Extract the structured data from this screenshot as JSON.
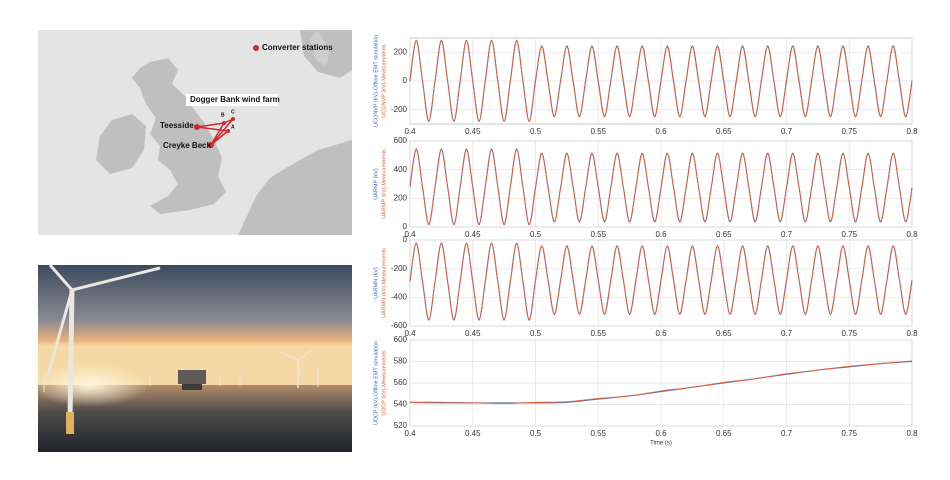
{
  "map": {
    "converter_legend": "Converter stations",
    "wind_farm": "Dogger Bank wind farm",
    "teesside": "Teesside",
    "creyke_beck": "Creyke Beck",
    "site_a": "A",
    "site_b": "B",
    "site_c": "C"
  },
  "chart_data": [
    {
      "type": "line",
      "xlim": [
        0.4,
        0.8
      ],
      "xticks": [
        0.4,
        0.45,
        0.5,
        0.55,
        0.6,
        0.65,
        0.7,
        0.75,
        0.8
      ],
      "ylim": [
        -300,
        300
      ],
      "yticks": [
        -200,
        0,
        200
      ],
      "grid": true,
      "x": [
        0.4,
        0.405,
        0.41,
        0.415,
        0.42,
        0.425,
        0.43,
        0.435,
        0.44,
        0.445,
        0.45,
        0.455,
        0.46,
        0.465,
        0.47,
        0.475,
        0.48,
        0.485,
        0.49,
        0.495,
        0.5,
        0.505,
        0.51,
        0.515,
        0.52,
        0.525,
        0.53,
        0.535,
        0.54,
        0.545,
        0.55,
        0.555,
        0.56,
        0.565,
        0.57,
        0.575,
        0.58,
        0.585,
        0.59,
        0.595,
        0.6,
        0.605,
        0.61,
        0.615,
        0.62,
        0.625,
        0.63,
        0.635,
        0.64,
        0.645,
        0.65,
        0.655,
        0.66,
        0.665,
        0.67,
        0.675,
        0.68,
        0.685,
        0.69,
        0.695,
        0.7,
        0.705,
        0.71,
        0.715,
        0.72,
        0.725,
        0.73,
        0.735,
        0.74,
        0.745,
        0.75,
        0.755,
        0.76,
        0.765,
        0.77,
        0.775,
        0.78,
        0.785,
        0.79,
        0.795,
        0.8
      ],
      "series": [
        {
          "name": "UCONVP (kV)-Offline EMT simulation",
          "color": "#3b6fb6",
          "values": [
            0,
            280,
            0,
            -280,
            0,
            280,
            0,
            -280,
            0,
            280,
            0,
            -280,
            0,
            280,
            0,
            -280,
            0,
            280,
            0,
            -280,
            0,
            245,
            0,
            -245,
            0,
            245,
            0,
            -245,
            0,
            245,
            0,
            -245,
            0,
            245,
            0,
            -245,
            0,
            245,
            0,
            -245,
            0,
            245,
            0,
            -245,
            0,
            245,
            0,
            -245,
            0,
            245,
            0,
            -245,
            0,
            245,
            0,
            -245,
            0,
            245,
            0,
            -245,
            0,
            245,
            0,
            -245,
            0,
            245,
            0,
            -245,
            0,
            245,
            0,
            -245,
            0,
            245,
            0,
            -245,
            0,
            245,
            0,
            -245,
            0
          ]
        },
        {
          "name": "UCONVP (kV)-Measurements",
          "color": "#d9603b",
          "values": [
            6,
            285,
            -4,
            -283,
            6,
            285,
            -4,
            -283,
            6,
            285,
            -4,
            -283,
            6,
            285,
            -4,
            -283,
            6,
            285,
            -4,
            -283,
            5,
            240,
            -6,
            -250,
            5,
            240,
            -6,
            -250,
            5,
            240,
            -6,
            -250,
            5,
            240,
            -6,
            -250,
            5,
            240,
            -6,
            -250,
            5,
            240,
            -6,
            -250,
            5,
            240,
            -6,
            -250,
            5,
            240,
            -6,
            -250,
            5,
            240,
            -6,
            -250,
            5,
            240,
            -6,
            -250,
            5,
            240,
            -6,
            -250,
            5,
            240,
            -6,
            -250,
            5,
            240,
            -6,
            -250,
            5,
            240,
            -6,
            -250,
            5,
            240,
            -6,
            -250,
            4
          ]
        }
      ]
    },
    {
      "type": "line",
      "xlim": [
        0.4,
        0.8
      ],
      "xticks": [
        0.4,
        0.45,
        0.5,
        0.55,
        0.6,
        0.65,
        0.7,
        0.75,
        0.8
      ],
      "ylim": [
        0,
        600
      ],
      "yticks": [
        0,
        200,
        400,
        600
      ],
      "grid": true,
      "x": [
        0.4,
        0.405,
        0.41,
        0.415,
        0.42,
        0.425,
        0.43,
        0.435,
        0.44,
        0.445,
        0.45,
        0.455,
        0.46,
        0.465,
        0.47,
        0.475,
        0.48,
        0.485,
        0.49,
        0.495,
        0.5,
        0.505,
        0.51,
        0.515,
        0.52,
        0.525,
        0.53,
        0.535,
        0.54,
        0.545,
        0.55,
        0.555,
        0.56,
        0.565,
        0.57,
        0.575,
        0.58,
        0.585,
        0.59,
        0.595,
        0.6,
        0.605,
        0.61,
        0.615,
        0.62,
        0.625,
        0.63,
        0.635,
        0.64,
        0.645,
        0.65,
        0.655,
        0.66,
        0.665,
        0.67,
        0.675,
        0.68,
        0.685,
        0.69,
        0.695,
        0.7,
        0.705,
        0.71,
        0.715,
        0.72,
        0.725,
        0.73,
        0.735,
        0.74,
        0.745,
        0.75,
        0.755,
        0.76,
        0.765,
        0.77,
        0.775,
        0.78,
        0.785,
        0.79,
        0.795,
        0.8
      ],
      "series": [
        {
          "name": "UARMP (kV)",
          "color": "#3b6fb6",
          "values": [
            280,
            540,
            280,
            20,
            280,
            540,
            280,
            20,
            280,
            540,
            280,
            20,
            280,
            540,
            280,
            20,
            280,
            540,
            280,
            20,
            275,
            515,
            275,
            35,
            275,
            515,
            275,
            35,
            275,
            515,
            275,
            35,
            275,
            515,
            275,
            35,
            275,
            515,
            275,
            35,
            275,
            515,
            275,
            35,
            275,
            515,
            275,
            35,
            275,
            515,
            275,
            35,
            275,
            515,
            275,
            35,
            275,
            515,
            275,
            35,
            275,
            515,
            275,
            35,
            275,
            515,
            275,
            35,
            275,
            515,
            275,
            35,
            275,
            515,
            275,
            35,
            275,
            515,
            275,
            35,
            275
          ]
        },
        {
          "name": "UARMP (kV)-Measurements",
          "color": "#d9603b",
          "values": [
            284,
            545,
            276,
            15,
            284,
            545,
            276,
            15,
            284,
            545,
            276,
            15,
            284,
            545,
            276,
            15,
            284,
            545,
            276,
            15,
            272,
            510,
            278,
            40,
            272,
            510,
            278,
            40,
            272,
            510,
            278,
            40,
            272,
            510,
            278,
            40,
            272,
            510,
            278,
            40,
            272,
            510,
            278,
            40,
            272,
            510,
            278,
            40,
            272,
            510,
            278,
            40,
            272,
            510,
            278,
            40,
            272,
            510,
            278,
            40,
            272,
            510,
            278,
            40,
            272,
            510,
            278,
            40,
            272,
            510,
            278,
            40,
            272,
            510,
            278,
            40,
            272,
            510,
            278,
            40,
            272
          ]
        }
      ]
    },
    {
      "type": "line",
      "xlim": [
        0.4,
        0.8
      ],
      "xticks": [
        0.4,
        0.45,
        0.5,
        0.55,
        0.6,
        0.65,
        0.7,
        0.75,
        0.8
      ],
      "ylim": [
        -600,
        0
      ],
      "yticks": [
        -600,
        -400,
        -200,
        0
      ],
      "grid": true,
      "x": [
        0.4,
        0.405,
        0.41,
        0.415,
        0.42,
        0.425,
        0.43,
        0.435,
        0.44,
        0.445,
        0.45,
        0.455,
        0.46,
        0.465,
        0.47,
        0.475,
        0.48,
        0.485,
        0.49,
        0.495,
        0.5,
        0.505,
        0.51,
        0.515,
        0.52,
        0.525,
        0.53,
        0.535,
        0.54,
        0.545,
        0.55,
        0.555,
        0.56,
        0.565,
        0.57,
        0.575,
        0.58,
        0.585,
        0.59,
        0.595,
        0.6,
        0.605,
        0.61,
        0.615,
        0.62,
        0.625,
        0.63,
        0.635,
        0.64,
        0.645,
        0.65,
        0.655,
        0.66,
        0.665,
        0.67,
        0.675,
        0.68,
        0.685,
        0.69,
        0.695,
        0.7,
        0.705,
        0.71,
        0.715,
        0.72,
        0.725,
        0.73,
        0.735,
        0.74,
        0.745,
        0.75,
        0.755,
        0.76,
        0.765,
        0.77,
        0.775,
        0.78,
        0.785,
        0.79,
        0.795,
        0.8
      ],
      "series": [
        {
          "name": "UARMN (kV)",
          "color": "#3b6fb6",
          "values": [
            -290,
            -25,
            -290,
            -555,
            -290,
            -25,
            -290,
            -555,
            -290,
            -25,
            -290,
            -555,
            -290,
            -25,
            -290,
            -555,
            -290,
            -25,
            -290,
            -555,
            -280,
            -45,
            -280,
            -515,
            -280,
            -45,
            -280,
            -515,
            -280,
            -45,
            -280,
            -515,
            -280,
            -45,
            -280,
            -515,
            -280,
            -45,
            -280,
            -515,
            -280,
            -45,
            -280,
            -515,
            -280,
            -45,
            -280,
            -515,
            -280,
            -45,
            -280,
            -515,
            -280,
            -45,
            -280,
            -515,
            -280,
            -45,
            -280,
            -515,
            -280,
            -45,
            -280,
            -515,
            -280,
            -45,
            -280,
            -515,
            -280,
            -45,
            -280,
            -515,
            -280,
            -45,
            -280,
            -515,
            -280,
            -45,
            -280,
            -515,
            -280
          ]
        },
        {
          "name": "UARMN (kV)-Measurements",
          "color": "#d9603b",
          "values": [
            -286,
            -20,
            -294,
            -560,
            -286,
            -20,
            -294,
            -560,
            -286,
            -20,
            -294,
            -560,
            -286,
            -20,
            -294,
            -560,
            -286,
            -20,
            -294,
            -560,
            -283,
            -40,
            -277,
            -520,
            -283,
            -40,
            -277,
            -520,
            -283,
            -40,
            -277,
            -520,
            -283,
            -40,
            -277,
            -520,
            -283,
            -40,
            -277,
            -520,
            -283,
            -40,
            -277,
            -520,
            -283,
            -40,
            -277,
            -520,
            -283,
            -40,
            -277,
            -520,
            -283,
            -40,
            -277,
            -520,
            -283,
            -40,
            -277,
            -520,
            -283,
            -40,
            -277,
            -520,
            -283,
            -40,
            -277,
            -520,
            -283,
            -40,
            -277,
            -520,
            -283,
            -40,
            -277,
            -520,
            -283,
            -40,
            -277,
            -520,
            -283
          ]
        }
      ]
    },
    {
      "type": "line",
      "xlabel": "Time (s)",
      "xlim": [
        0.4,
        0.8
      ],
      "xticks": [
        0.4,
        0.45,
        0.5,
        0.55,
        0.6,
        0.65,
        0.7,
        0.75,
        0.8
      ],
      "ylim": [
        520,
        600
      ],
      "yticks": [
        520,
        540,
        560,
        580,
        600
      ],
      "grid": true,
      "x": [
        0.4,
        0.425,
        0.45,
        0.475,
        0.5,
        0.525,
        0.55,
        0.575,
        0.6,
        0.625,
        0.65,
        0.675,
        0.7,
        0.725,
        0.75,
        0.775,
        0.8
      ],
      "series": [
        {
          "name": "UDCP (kV)-Offline EMT simulation",
          "color": "#3b6fb6",
          "values": [
            542,
            542,
            541.5,
            541.5,
            541.5,
            542,
            545,
            548,
            552,
            556,
            560,
            564,
            568,
            572,
            575,
            578,
            580
          ]
        },
        {
          "name": "UDCP (kV)-Measurements",
          "color": "#d9603b",
          "values": [
            542,
            541.5,
            541.5,
            541,
            542,
            542.5,
            545.5,
            548,
            552.5,
            556,
            560.5,
            564,
            568.5,
            572,
            575.5,
            578,
            580.5
          ]
        }
      ]
    }
  ]
}
